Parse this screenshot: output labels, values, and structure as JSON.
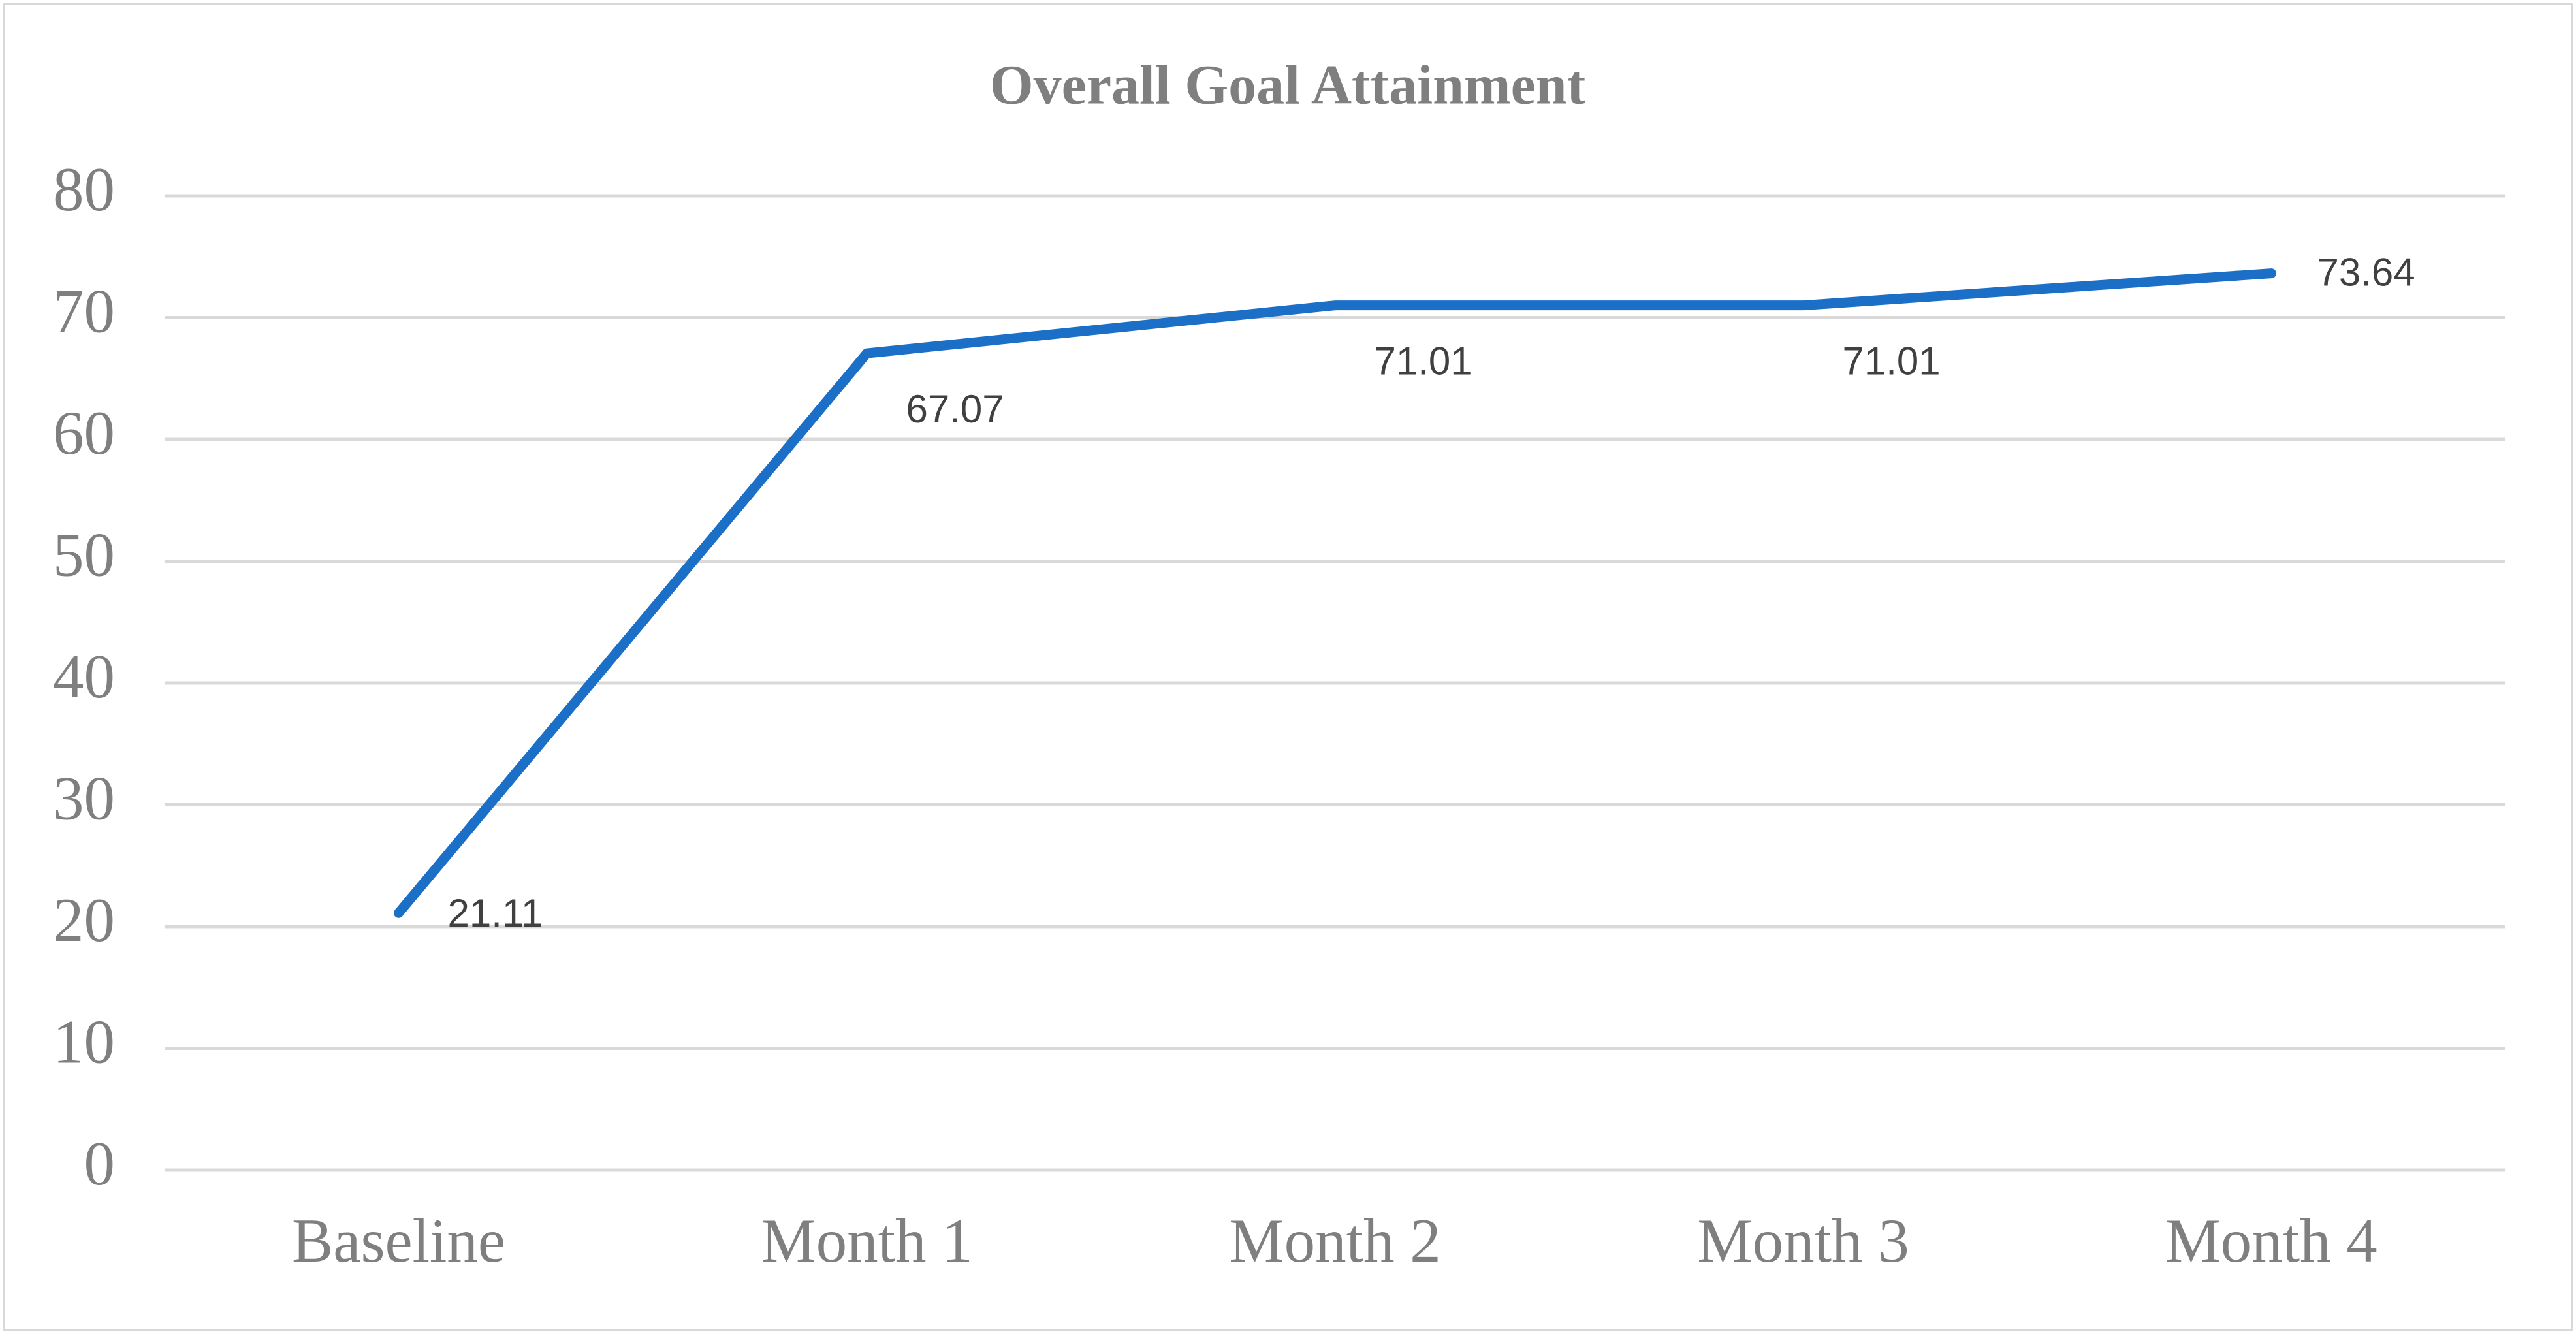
{
  "chart_data": {
    "type": "line",
    "title": "Overall Goal Attainment",
    "categories": [
      "Baseline",
      "Month 1",
      "Month 2",
      "Month 3",
      "Month 4"
    ],
    "values": [
      21.11,
      67.07,
      71.01,
      71.01,
      73.64
    ],
    "color": "#1c6fc6",
    "ylim": [
      0,
      80
    ],
    "yticks": [
      0,
      10,
      20,
      30,
      40,
      50,
      60,
      70,
      80
    ],
    "grid": true
  }
}
